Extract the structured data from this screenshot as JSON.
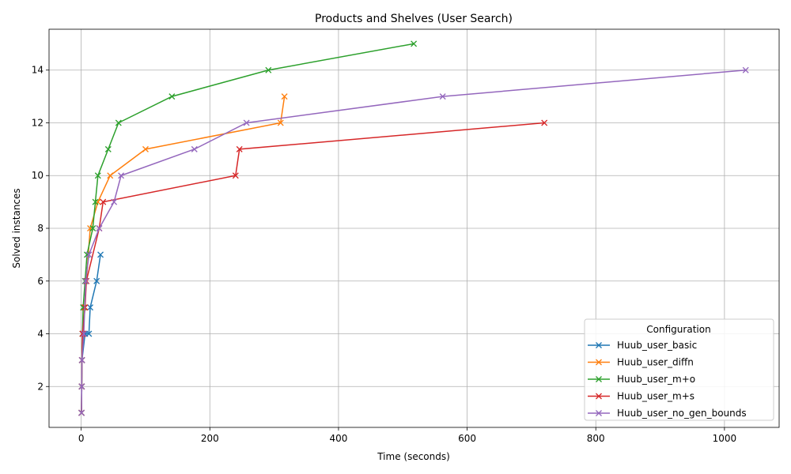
{
  "chart_data": {
    "type": "line",
    "title": "Products and Shelves (User Search)",
    "xlabel": "Time (seconds)",
    "ylabel": "Solved instances",
    "xlim": [
      -50,
      1085
    ],
    "ylim": [
      0.45,
      15.55
    ],
    "xticks": [
      0,
      200,
      400,
      600,
      800,
      1000
    ],
    "yticks": [
      2,
      4,
      6,
      8,
      10,
      12,
      14
    ],
    "grid": true,
    "marker": "x",
    "legend": {
      "title": "Configuration",
      "placement": "lower right"
    },
    "series": [
      {
        "name": "Huub_user_basic",
        "color": "#1f77b4",
        "x": [
          0.5,
          0.8,
          1.2,
          6,
          12,
          14,
          24,
          30
        ],
        "y": [
          1,
          2,
          3,
          4,
          4,
          5,
          6,
          7
        ]
      },
      {
        "name": "Huub_user_diffn",
        "color": "#ff7f0e",
        "x": [
          0.5,
          0.8,
          1.2,
          3,
          5,
          8,
          14,
          26,
          45,
          100,
          310,
          316
        ],
        "y": [
          1,
          2,
          3,
          4,
          5,
          6,
          8,
          9,
          10,
          11,
          12,
          13
        ]
      },
      {
        "name": "Huub_user_m+o",
        "color": "#2ca02c",
        "x": [
          0.5,
          0.8,
          1.2,
          2,
          3,
          6,
          9,
          18,
          22,
          26,
          42,
          58,
          141,
          291,
          517
        ],
        "y": [
          1,
          2,
          3,
          4,
          5,
          6,
          7,
          8,
          9,
          10,
          11,
          12,
          13,
          14,
          15
        ]
      },
      {
        "name": "Huub_user_m+s",
        "color": "#d62728",
        "x": [
          0.5,
          0.8,
          1.2,
          2,
          6,
          8,
          28,
          34,
          240,
          246,
          720
        ],
        "y": [
          1,
          2,
          3,
          4,
          5,
          6,
          8,
          9,
          10,
          11,
          12
        ]
      },
      {
        "name": "Huub_user_no_gen_bounds",
        "color": "#9467bd",
        "x": [
          0.5,
          0.8,
          1.2,
          4,
          7,
          12,
          28,
          51,
          62,
          176,
          257,
          562,
          1033
        ],
        "y": [
          1,
          2,
          3,
          4,
          6,
          7,
          8,
          9,
          10,
          11,
          12,
          13,
          14
        ]
      }
    ]
  }
}
